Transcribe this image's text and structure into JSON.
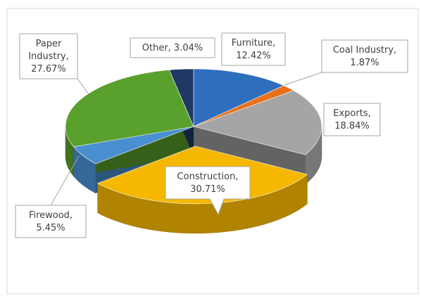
{
  "chart_data": {
    "type": "pie3d",
    "categories": [
      "Furniture",
      "Coal Industry",
      "Exports",
      "Construction",
      "Firewood",
      "Paper Industry",
      "Other"
    ],
    "values": [
      12.42,
      1.87,
      18.84,
      30.71,
      5.45,
      27.67,
      3.04
    ],
    "value_labels": [
      "Furniture, 12.42%",
      "Coal Industry, 1.87%",
      "Exports, 18.84%",
      "Construction, 30.71%",
      "Firewood, 5.45%",
      "Paper Industry, 27.67%",
      "Other, 3.04%"
    ],
    "colors": [
      "#2f6ebd",
      "#e8711c",
      "#a5a5a5",
      "#f5b700",
      "#4a90d0",
      "#5aa02c",
      "#1f3864"
    ],
    "exploded": [
      3
    ]
  }
}
